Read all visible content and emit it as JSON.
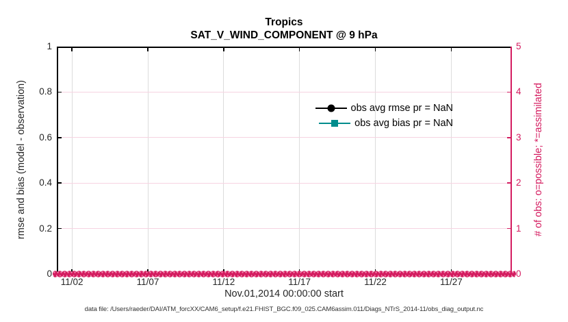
{
  "colors": {
    "pink": "#d41b5f",
    "pink_light": "#ef87ad",
    "teal": "#008c8c",
    "black": "#000000",
    "grid_gray": "#dcdcdc",
    "grid_pink": "#f6d3e1",
    "ink": "#262626",
    "footer": "#333333"
  },
  "title": {
    "line1": "Tropics",
    "line2": "SAT_V_WIND_COMPONENT @ 9 hPa"
  },
  "legend": {
    "items": [
      {
        "label": "obs avg rmse pr = NaN",
        "marker": "circle",
        "color": "#000000"
      },
      {
        "label": "obs avg bias pr = NaN",
        "marker": "square",
        "color": "#008c8c"
      }
    ]
  },
  "axes": {
    "x": {
      "label": "Nov.01,2014 00:00:00 start",
      "range_days": [
        0,
        30
      ],
      "ticks": [
        {
          "label": "11/02",
          "day": 1
        },
        {
          "label": "11/07",
          "day": 6
        },
        {
          "label": "11/12",
          "day": 11
        },
        {
          "label": "11/17",
          "day": 16
        },
        {
          "label": "11/22",
          "day": 21
        },
        {
          "label": "11/27",
          "day": 26
        }
      ]
    },
    "left": {
      "label": "rmse and bias (model - observation)",
      "range": [
        0,
        1
      ],
      "ticks": [
        "0",
        "0.2",
        "0.4",
        "0.6",
        "0.8",
        "1"
      ]
    },
    "right": {
      "label": "# of obs: o=possible; *=assimilated",
      "range": [
        0,
        5
      ],
      "ticks": [
        "0",
        "1",
        "2",
        "3",
        "4",
        "5"
      ]
    }
  },
  "footer": {
    "text": "data file: /Users/raeder/DAI/ATM_forcXX/CAM6_setup/f.e21.FHIST_BGC.f09_025.CAM6assim.011/Diags_NTrS_2014-11/obs_diag_output.nc"
  },
  "chart_data": {
    "type": "line",
    "title": "Tropics",
    "subtitle": "SAT_V_WIND_COMPONENT @ 9 hPa",
    "xlabel": "Nov.01,2014 00:00:00 start",
    "ylabel": "rmse and bias (model - observation)",
    "ylabel_right": "# of obs: o=possible; *=assimilated",
    "xlim_days": [
      0,
      30
    ],
    "ylim": [
      0,
      1
    ],
    "ylim_right": [
      0,
      5
    ],
    "x_ticks": [
      "11/02",
      "11/07",
      "11/12",
      "11/17",
      "11/22",
      "11/27"
    ],
    "y_ticks": [
      0,
      0.2,
      0.4,
      0.6,
      0.8,
      1
    ],
    "y_ticks_right": [
      0,
      1,
      2,
      3,
      4,
      5
    ],
    "grid": true,
    "legend_position": "top-right-inside",
    "series": [
      {
        "name": "obs avg rmse pr = NaN",
        "axis": "left",
        "marker": "circle",
        "color": "#000000",
        "values": null,
        "note": "all values NaN - no curve drawn"
      },
      {
        "name": "obs avg bias pr = NaN",
        "axis": "left",
        "marker": "square",
        "color": "#008c8c",
        "values": null,
        "note": "all values NaN - no curve drawn"
      },
      {
        "name": "# of obs possible (o)",
        "axis": "right",
        "marker": "o",
        "color": "#d41b5f",
        "constant_value": 0,
        "span": "2014-11-01 to 2014-12-01"
      },
      {
        "name": "# of obs assimilated (*)",
        "axis": "right",
        "marker": "*",
        "color": "#ef87ad",
        "constant_value": 0,
        "span": "2014-11-01 to 2014-12-01"
      }
    ]
  }
}
